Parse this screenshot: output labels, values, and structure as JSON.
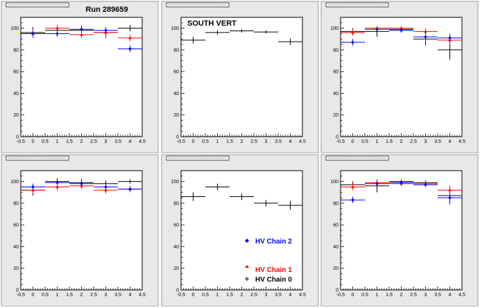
{
  "header": {
    "run_label": "Run 289659",
    "panel_label": "SOUTH VERT"
  },
  "legend": {
    "position": "bottom-right of panel 5",
    "entries": [
      {
        "name": "HV Chain 2",
        "color": "#0000ff",
        "marker": "diamond"
      },
      {
        "name": "HV Chain 1",
        "color": "#ff0000",
        "marker": "triangle"
      },
      {
        "name": "HV Chain 0",
        "color": "#000000",
        "marker": "cross"
      }
    ]
  },
  "chart_data": [
    {
      "type": "scatter",
      "xlim": [
        -0.5,
        4.5
      ],
      "ylim": [
        0,
        110
      ],
      "xticks": [
        -0.5,
        0,
        0.5,
        1,
        1.5,
        2,
        2.5,
        3,
        3.5,
        4,
        4.5
      ],
      "yticks": [
        0,
        20,
        40,
        60,
        80,
        100
      ],
      "series": [
        {
          "name": "HV Chain 0",
          "color": "#000000",
          "x": [
            0,
            1,
            2,
            3,
            4
          ],
          "y": [
            96,
            98,
            98,
            96,
            100
          ],
          "yerr": [
            5,
            3,
            3,
            5,
            3
          ]
        },
        {
          "name": "HV Chain 1",
          "color": "#ff0000",
          "x": [
            0,
            1,
            2,
            3,
            4
          ],
          "y": [
            95,
            100,
            94,
            96,
            91
          ],
          "yerr": [
            4,
            3,
            3,
            4,
            3
          ]
        },
        {
          "name": "HV Chain 2",
          "color": "#0000ff",
          "x": [
            0,
            1,
            2,
            3,
            4
          ],
          "y": [
            95,
            95,
            99,
            98,
            81
          ],
          "yerr": [
            3,
            3,
            3,
            3,
            3
          ]
        }
      ]
    },
    {
      "type": "scatter",
      "xlim": [
        -0.5,
        4.5
      ],
      "ylim": [
        0,
        110
      ],
      "xticks": [
        -0.5,
        0,
        0.5,
        1,
        1.5,
        2,
        2.5,
        3,
        3.5,
        4,
        4.5
      ],
      "yticks": [
        0,
        20,
        40,
        60,
        80,
        100
      ],
      "series": [
        {
          "name": "HV Chain 0",
          "color": "#000000",
          "x": [
            0,
            1,
            2,
            3,
            4
          ],
          "y": [
            89,
            96,
            97.5,
            96.5,
            87.5
          ],
          "yerr": [
            3,
            2,
            1.5,
            1.5,
            3
          ]
        }
      ]
    },
    {
      "type": "scatter",
      "xlim": [
        -0.5,
        4.5
      ],
      "ylim": [
        0,
        110
      ],
      "xticks": [
        -0.5,
        0,
        0.5,
        1,
        1.5,
        2,
        2.5,
        3,
        3.5,
        4,
        4.5
      ],
      "yticks": [
        0,
        20,
        40,
        60,
        80,
        100
      ],
      "series": [
        {
          "name": "HV Chain 0",
          "color": "#000000",
          "x": [
            0,
            1,
            2,
            3,
            4
          ],
          "y": [
            97,
            97,
            99,
            90,
            80
          ],
          "yerr": [
            3,
            5,
            3,
            6,
            9
          ]
        },
        {
          "name": "HV Chain 1",
          "color": "#ff0000",
          "x": [
            0,
            1,
            2,
            3,
            4
          ],
          "y": [
            96,
            100,
            100,
            97,
            89
          ],
          "yerr": [
            3,
            2,
            2,
            3,
            4
          ]
        },
        {
          "name": "HV Chain 2",
          "color": "#0000ff",
          "x": [
            0,
            1,
            2,
            3,
            4
          ],
          "y": [
            87,
            99,
            98,
            92,
            91
          ],
          "yerr": [
            3,
            2,
            2,
            5,
            4
          ]
        }
      ]
    },
    {
      "type": "scatter",
      "xlim": [
        -0.5,
        4.5
      ],
      "ylim": [
        0,
        110
      ],
      "xticks": [
        -0.5,
        0,
        0.5,
        1,
        1.5,
        2,
        2.5,
        3,
        3.5,
        4,
        4.5
      ],
      "yticks": [
        0,
        20,
        40,
        60,
        80,
        100
      ],
      "series": [
        {
          "name": "HV Chain 0",
          "color": "#000000",
          "x": [
            0,
            1,
            2,
            3,
            4
          ],
          "y": [
            92,
            100,
            99,
            98,
            100
          ],
          "yerr": [
            5,
            3,
            3,
            3,
            2
          ]
        },
        {
          "name": "HV Chain 1",
          "color": "#ff0000",
          "x": [
            0,
            1,
            2,
            3,
            4
          ],
          "y": [
            92,
            95,
            96,
            92,
            93
          ],
          "yerr": [
            3,
            3,
            3,
            3,
            3
          ]
        },
        {
          "name": "HV Chain 2",
          "color": "#0000ff",
          "x": [
            0,
            1,
            2,
            3,
            4
          ],
          "y": [
            95,
            99,
            98,
            95,
            93
          ],
          "yerr": [
            3,
            2,
            2,
            3,
            2
          ]
        }
      ]
    },
    {
      "type": "scatter",
      "xlim": [
        -0.5,
        4.5
      ],
      "ylim": [
        0,
        110
      ],
      "xticks": [
        -0.5,
        0,
        0.5,
        1,
        1.5,
        2,
        2.5,
        3,
        3.5,
        4,
        4.5
      ],
      "yticks": [
        0,
        20,
        40,
        60,
        80,
        100
      ],
      "series": [
        {
          "name": "HV Chain 0",
          "color": "#000000",
          "x": [
            0,
            1,
            2,
            3,
            4
          ],
          "y": [
            86,
            95,
            86,
            80,
            78
          ],
          "yerr": [
            4,
            3,
            3,
            3,
            4
          ]
        }
      ]
    },
    {
      "type": "scatter",
      "xlim": [
        -0.5,
        4.5
      ],
      "ylim": [
        0,
        110
      ],
      "xticks": [
        -0.5,
        0,
        0.5,
        1,
        1.5,
        2,
        2.5,
        3,
        3.5,
        4,
        4.5
      ],
      "yticks": [
        0,
        20,
        40,
        60,
        80,
        100
      ],
      "series": [
        {
          "name": "HV Chain 0",
          "color": "#000000",
          "x": [
            0,
            1,
            2,
            3,
            4
          ],
          "y": [
            97,
            96,
            100,
            99,
            87
          ],
          "yerr": [
            3,
            6,
            2,
            2,
            8
          ]
        },
        {
          "name": "HV Chain 1",
          "color": "#ff0000",
          "x": [
            0,
            1,
            2,
            3,
            4
          ],
          "y": [
            95,
            99,
            98,
            98,
            92
          ],
          "yerr": [
            3,
            2,
            2,
            2,
            4
          ]
        },
        {
          "name": "HV Chain 2",
          "color": "#0000ff",
          "x": [
            0,
            1,
            2,
            3,
            4
          ],
          "y": [
            83,
            98,
            99,
            97,
            85
          ],
          "yerr": [
            3,
            2,
            2,
            2,
            5
          ]
        }
      ]
    }
  ]
}
